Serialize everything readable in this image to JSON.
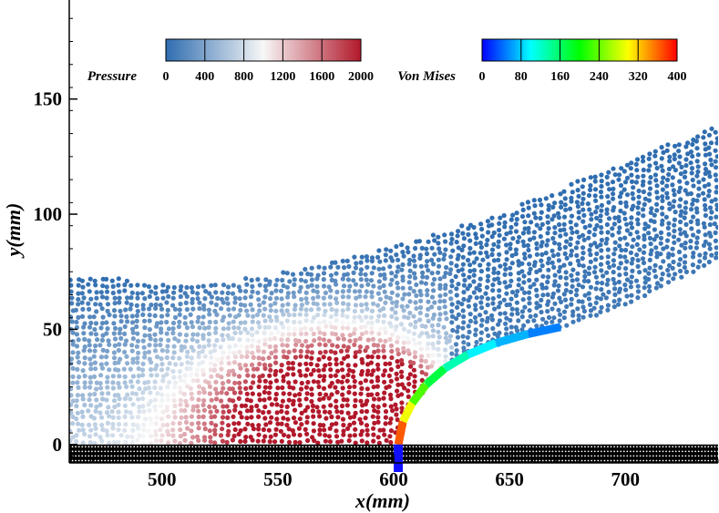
{
  "chart_data": {
    "type": "scatter",
    "title": "",
    "xlabel": "x(mm)",
    "ylabel": "y(mm)",
    "xlim": [
      460,
      740
    ],
    "ylim": [
      -8,
      193
    ],
    "x_ticks": [
      "500",
      "550",
      "600",
      "650",
      "700"
    ],
    "x_tick_values": [
      500,
      550,
      600,
      650,
      700
    ],
    "y_ticks": [
      "0",
      "50",
      "100",
      "150"
    ],
    "y_tick_values": [
      0,
      50,
      100,
      150
    ],
    "grid": false,
    "colorbars": [
      {
        "name": "Pressure",
        "colormap": "blue-white-red",
        "range": [
          0,
          2000
        ],
        "ticks": [
          "0",
          "400",
          "800",
          "1200",
          "1600",
          "2000"
        ],
        "colors": [
          "#2f6db0",
          "#f7f7f7",
          "#b2182b"
        ]
      },
      {
        "name": "Von Mises",
        "colormap": "jet",
        "range": [
          0,
          400
        ],
        "ticks": [
          "0",
          "80",
          "160",
          "240",
          "320",
          "400"
        ],
        "colors": [
          "#0000ff",
          "#00ffff",
          "#00ff00",
          "#ffff00",
          "#ff0000"
        ]
      }
    ],
    "fluid_free_surface": [
      {
        "x": 460,
        "y": 73
      },
      {
        "x": 480,
        "y": 72
      },
      {
        "x": 500,
        "y": 70
      },
      {
        "x": 520,
        "y": 70
      },
      {
        "x": 540,
        "y": 72
      },
      {
        "x": 560,
        "y": 76
      },
      {
        "x": 580,
        "y": 81
      },
      {
        "x": 600,
        "y": 86
      },
      {
        "x": 620,
        "y": 92
      },
      {
        "x": 640,
        "y": 98
      },
      {
        "x": 660,
        "y": 106
      },
      {
        "x": 680,
        "y": 114
      },
      {
        "x": 700,
        "y": 123
      },
      {
        "x": 720,
        "y": 131
      },
      {
        "x": 740,
        "y": 138
      }
    ],
    "fluid_bottom_boundary": [
      {
        "x": 460,
        "y": 0
      },
      {
        "x": 600,
        "y": 0
      },
      {
        "x": 603,
        "y": 8
      },
      {
        "x": 610,
        "y": 20
      },
      {
        "x": 622,
        "y": 32
      },
      {
        "x": 640,
        "y": 41
      },
      {
        "x": 660,
        "y": 47
      },
      {
        "x": 672,
        "y": 50
      },
      {
        "x": 700,
        "y": 60
      },
      {
        "x": 720,
        "y": 70
      },
      {
        "x": 740,
        "y": 80
      }
    ],
    "pressure_hotspots": [
      {
        "x": 580,
        "y": 20,
        "value": 2000,
        "radius": 26
      },
      {
        "x": 600,
        "y": 22,
        "value": 1900,
        "radius": 10
      },
      {
        "x": 540,
        "y": 10,
        "value": 1100,
        "radius": 30
      }
    ],
    "pressure_reference_value": 300,
    "elastic_plate": {
      "base": [
        602,
        -8
      ],
      "points": [
        {
          "x": 602,
          "y": 0
        },
        {
          "x": 604,
          "y": 10
        },
        {
          "x": 608,
          "y": 18
        },
        {
          "x": 614,
          "y": 26
        },
        {
          "x": 622,
          "y": 33
        },
        {
          "x": 632,
          "y": 39
        },
        {
          "x": 644,
          "y": 44
        },
        {
          "x": 658,
          "y": 48
        },
        {
          "x": 672,
          "y": 51
        }
      ],
      "von_mises": [
        400,
        330,
        260,
        200,
        150,
        110,
        80,
        60,
        40
      ]
    },
    "floor": {
      "y_top": 0,
      "y_bottom": -8,
      "type": "rigid particles"
    }
  }
}
